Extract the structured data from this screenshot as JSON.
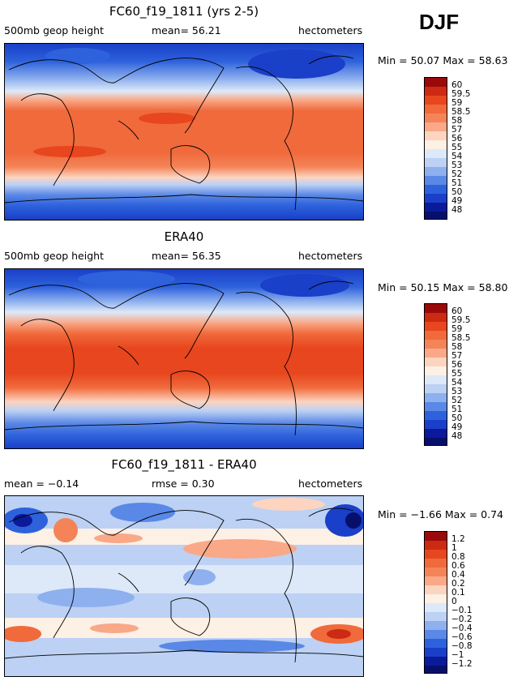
{
  "season": "DJF",
  "panels": [
    {
      "title": "FC60_f19_1811 (yrs 2-5)",
      "left_label": "500mb geop height",
      "center_label": "mean=  56.21",
      "right_label": "hectometers",
      "min_max": "Min =  50.07 Max =  58.63",
      "colorbar": [
        "60",
        "59.5",
        "59",
        "58.5",
        "58",
        "57",
        "56",
        "55",
        "54",
        "53",
        "52",
        "51",
        "50",
        "49",
        "48"
      ]
    },
    {
      "title": "ERA40",
      "left_label": "500mb geop height",
      "center_label": "mean=  56.35",
      "right_label": "hectometers",
      "min_max": "Min =  50.15 Max =  58.80",
      "colorbar": [
        "60",
        "59.5",
        "59",
        "58.5",
        "58",
        "57",
        "56",
        "55",
        "54",
        "53",
        "52",
        "51",
        "50",
        "49",
        "48"
      ]
    },
    {
      "title": "FC60_f19_1811 - ERA40",
      "left_label": "mean =  −0.14",
      "center_label": "rmse =   0.30",
      "right_label": "hectometers",
      "min_max": "Min =  −1.66 Max =   0.74",
      "colorbar": [
        "1.2",
        "1",
        "0.8",
        "0.6",
        "0.4",
        "0.2",
        "0.1",
        "0",
        "−0.1",
        "−0.2",
        "−0.4",
        "−0.6",
        "−0.8",
        "−1",
        "−1.2"
      ]
    }
  ],
  "colors": {
    "palette": [
      "#9a0a0a",
      "#cc2a12",
      "#e8461e",
      "#f06a3c",
      "#f48458",
      "#f9a888",
      "#fcd4c0",
      "#fdf0e4",
      "#dde9f8",
      "#bcd1f4",
      "#8eb0ee",
      "#5a88e6",
      "#2e62dc",
      "#1a3fc8",
      "#0a1a9a",
      "#06106c"
    ]
  }
}
